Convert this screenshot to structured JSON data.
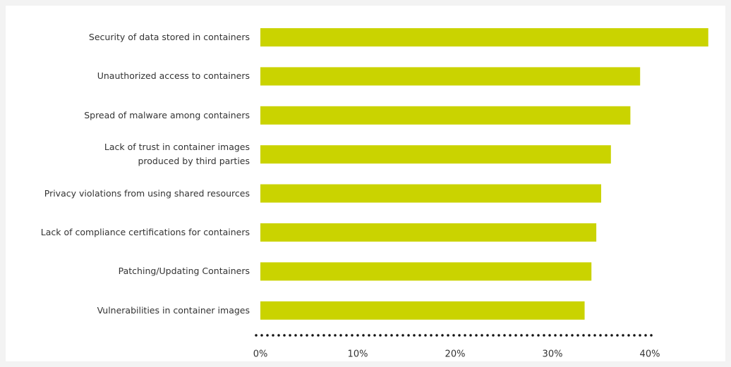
{
  "chart_data": {
    "type": "bar",
    "orientation": "horizontal",
    "categories": [
      "Security of data stored in containers",
      "Unauthorized access to containers",
      "Spread of malware among containers",
      "Lack of trust in container images\nproduced by third parties",
      "Privacy violations from using shared resources",
      "Lack of compliance certifications for containers",
      "Patching/Updating Containers",
      "Vulnerabilities in container images"
    ],
    "values": [
      46,
      39,
      38,
      36,
      35,
      34.5,
      34,
      33.3
    ],
    "color": "#cad300",
    "xlim": [
      0,
      46
    ],
    "xticks": [
      {
        "value": 0,
        "label": "0%"
      },
      {
        "value": 10,
        "label": "10%"
      },
      {
        "value": 20,
        "label": "20%"
      },
      {
        "value": 30,
        "label": "30%"
      },
      {
        "value": 40,
        "label": "40%"
      }
    ]
  }
}
